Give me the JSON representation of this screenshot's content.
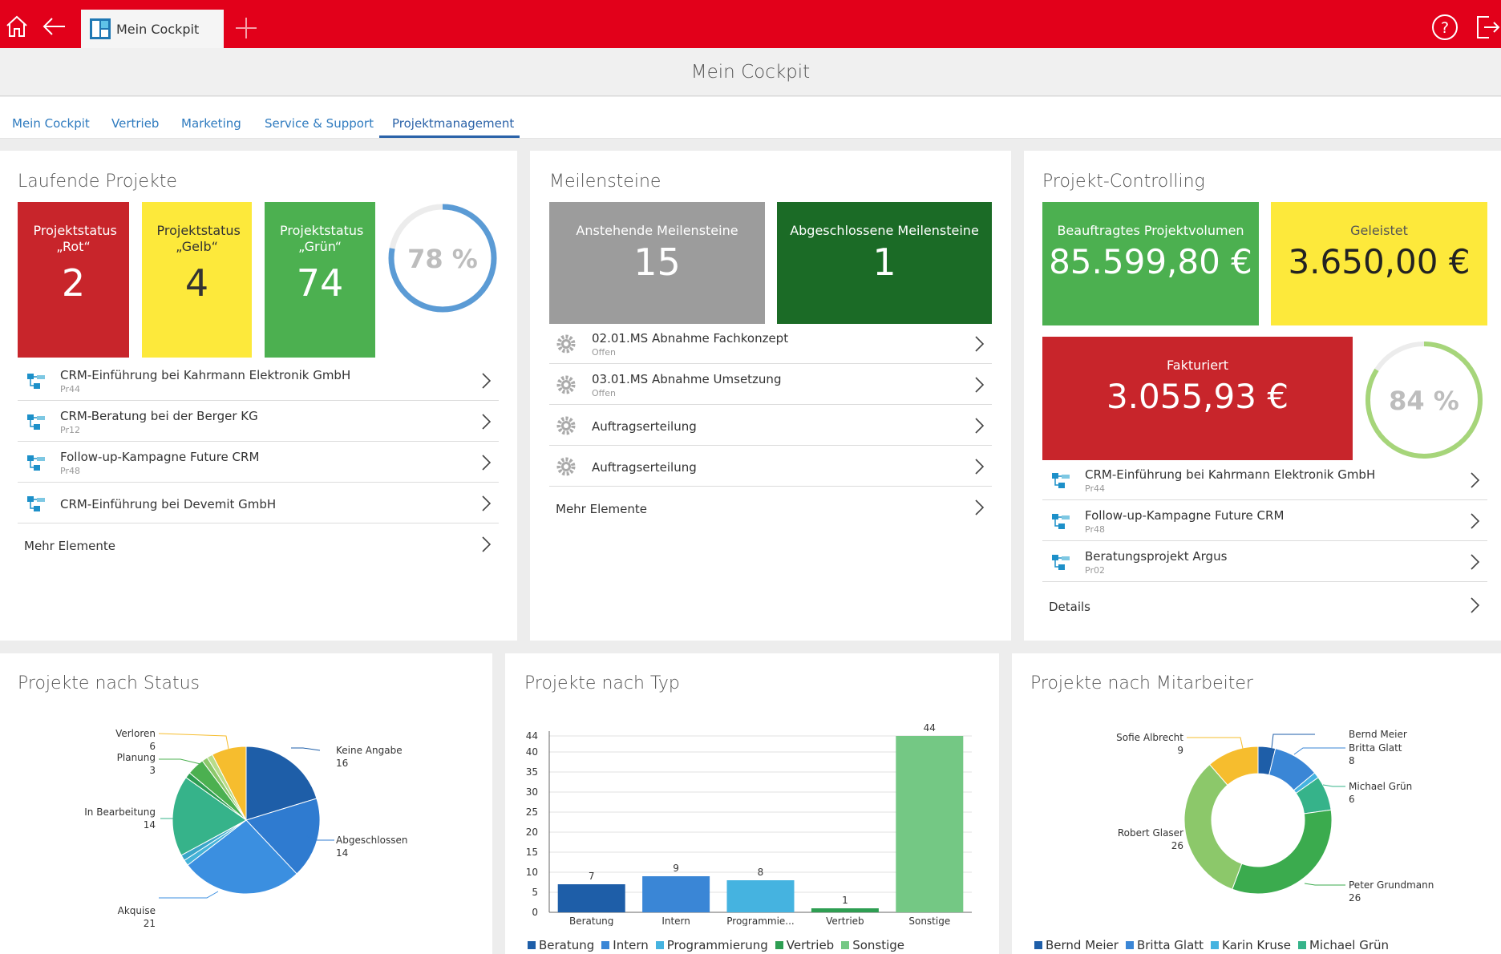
{
  "header": {
    "tab_title": "Mein Cockpit",
    "page_title": "Mein Cockpit"
  },
  "nav": {
    "tabs": [
      "Mein Cockpit",
      "Vertrieb",
      "Marketing",
      "Service & Support",
      "Projektmanagement"
    ],
    "active": "Projektmanagement"
  },
  "laufende": {
    "title": "Laufende Projekte",
    "tiles": [
      {
        "label": "Projektstatus „Rot“",
        "value": "2",
        "color": "#c8252b"
      },
      {
        "label": "Projektstatus „Gelb“",
        "value": "4",
        "color": "#fde93b"
      },
      {
        "label": "Projektstatus „Grün“",
        "value": "74",
        "color": "#4cb050"
      }
    ],
    "ring": {
      "text": "78 %",
      "percent": 78,
      "color": "#5b9bd5"
    },
    "items": [
      {
        "title": "CRM-Einführung bei Kahrmann Elektronik GmbH",
        "sub": "Pr44"
      },
      {
        "title": "CRM-Beratung bei der Berger KG",
        "sub": "Pr12"
      },
      {
        "title": "Follow-up-Kampagne Future CRM",
        "sub": "Pr48"
      },
      {
        "title": "CRM-Einführung bei Devemit GmbH",
        "sub": ""
      }
    ],
    "more": "Mehr Elemente"
  },
  "meilensteine": {
    "title": "Meilensteine",
    "tiles": [
      {
        "label": "Anstehende Meilensteine",
        "value": "15",
        "color": "#9c9c9c"
      },
      {
        "label": "Abgeschlossene Meilensteine",
        "value": "1",
        "color": "#1b6b26"
      }
    ],
    "items": [
      {
        "title": "02.01.MS Abnahme Fachkonzept",
        "sub": "Offen"
      },
      {
        "title": "03.01.MS Abnahme Umsetzung",
        "sub": "Offen"
      },
      {
        "title": "Auftragserteilung",
        "sub": ""
      },
      {
        "title": "Auftragserteilung",
        "sub": ""
      }
    ],
    "more": "Mehr Elemente"
  },
  "controlling": {
    "title": "Projekt-Controlling",
    "tiles": [
      {
        "label": "Beauftragtes Projektvolumen",
        "value": "85.599,80 €",
        "color": "#4cb050"
      },
      {
        "label": "Geleistet",
        "value": "3.650,00 €",
        "color": "#fde93b"
      },
      {
        "label": "Fakturiert",
        "value": "3.055,93 €",
        "color": "#c8252b"
      }
    ],
    "ring": {
      "text": "84 %",
      "percent": 84,
      "color": "#a6d57a"
    },
    "items": [
      {
        "title": "CRM-Einführung bei Kahrmann Elektronik GmbH",
        "sub": "Pr44"
      },
      {
        "title": "Follow-up-Kampagne Future CRM",
        "sub": "Pr48"
      },
      {
        "title": "Beratungsprojekt Argus",
        "sub": "Pr02"
      }
    ],
    "more": "Details"
  },
  "status_chart": {
    "title": "Projekte nach Status",
    "chart_data": {
      "type": "pie",
      "slices": [
        {
          "name": "Keine Angabe",
          "value": 16,
          "color": "#1e5ea8"
        },
        {
          "name": "Abgeschlossen",
          "value": 14,
          "color": "#2f7bd0"
        },
        {
          "name": "Akquise",
          "value": 21,
          "color": "#3b8fe0"
        },
        {
          "name": "",
          "value": 1,
          "color": "#45b3d8"
        },
        {
          "name": "",
          "value": 1,
          "color": "#3aa6c8"
        },
        {
          "name": "In Bearbeitung",
          "value": 14,
          "color": "#36b38a"
        },
        {
          "name": "",
          "value": 1,
          "color": "#2e9e52"
        },
        {
          "name": "Planung",
          "value": 3,
          "color": "#4cb050"
        },
        {
          "name": "",
          "value": 1,
          "color": "#8cc86a"
        },
        {
          "name": "",
          "value": 1,
          "color": "#b8dc8a"
        },
        {
          "name": "Verloren",
          "value": 6,
          "color": "#f6bd2e"
        }
      ]
    }
  },
  "type_chart": {
    "title": "Projekte nach Typ",
    "chart_data": {
      "type": "bar",
      "categories": [
        "Beratung",
        "Intern",
        "Programmie...",
        "Vertrieb",
        "Sonstige"
      ],
      "values": [
        7,
        9,
        8,
        1,
        44
      ],
      "colors": [
        "#1e5ea8",
        "#3a86d6",
        "#45b3e0",
        "#2e9e52",
        "#74c884"
      ],
      "yticks": [
        0,
        5,
        10,
        15,
        20,
        25,
        30,
        35,
        40,
        44
      ],
      "ylim": [
        0,
        44
      ],
      "legend": [
        "Beratung",
        "Intern",
        "Programmierung",
        "Vertrieb",
        "Sonstige"
      ]
    }
  },
  "mitarbeiter_chart": {
    "title": "Projekte nach Mitarbeiter",
    "chart_data": {
      "type": "pie",
      "donut": true,
      "slices": [
        {
          "name": "Bernd Meier",
          "value": 3,
          "color": "#1e5ea8"
        },
        {
          "name": "Britta Glatt",
          "value": 8,
          "color": "#3a86d6"
        },
        {
          "name": "Karin Kruse",
          "value": 1,
          "color": "#45b3e0"
        },
        {
          "name": "Michael Grün",
          "value": 6,
          "color": "#36b38a"
        },
        {
          "name": "Peter Grundmann",
          "value": 26,
          "color": "#3bab4e"
        },
        {
          "name": "Robert Glaser",
          "value": 26,
          "color": "#8cc86a"
        },
        {
          "name": "Sofie Albrecht",
          "value": 9,
          "color": "#f6bd2e"
        }
      ],
      "legend": [
        "Bernd Meier",
        "Britta Glatt",
        "Karin Kruse",
        "Michael Grün"
      ]
    }
  }
}
